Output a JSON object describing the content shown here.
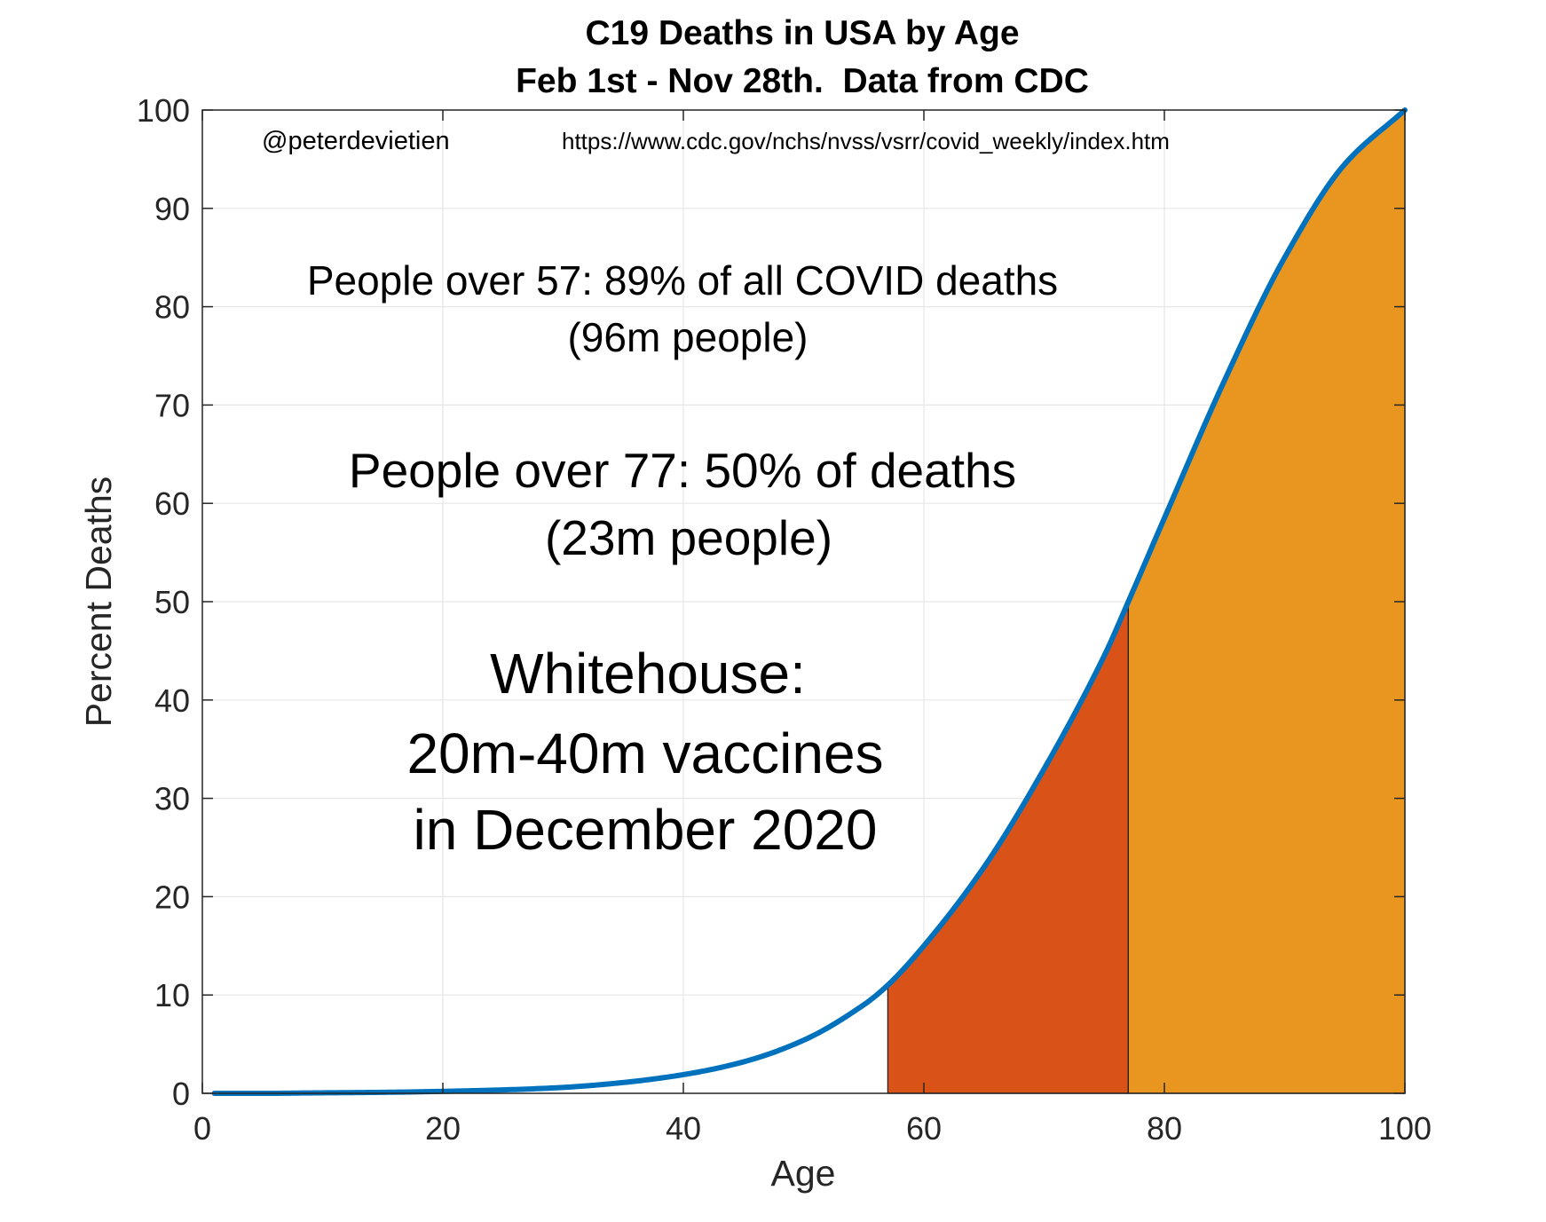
{
  "chart_data": {
    "type": "area",
    "title": "C19 Deaths in USA by Age",
    "subtitle": "Feb 1st - Nov 28th.  Data from CDC",
    "xlabel": "Age",
    "ylabel": "Percent Deaths",
    "xlim": [
      0,
      100
    ],
    "ylim": [
      0,
      100
    ],
    "xticks": [
      0,
      20,
      40,
      60,
      80,
      100
    ],
    "yticks": [
      0,
      10,
      20,
      30,
      40,
      50,
      60,
      70,
      80,
      90,
      100
    ],
    "grid": true,
    "series": [
      {
        "type": "line",
        "color": "#0072BD",
        "x": [
          1,
          5,
          10,
          15,
          20,
          25,
          30,
          35,
          40,
          45,
          50,
          55,
          57,
          60,
          65,
          70,
          75,
          77,
          80,
          85,
          90,
          95,
          100
        ],
        "y": [
          0,
          0,
          0.05,
          0.1,
          0.2,
          0.35,
          0.6,
          1.1,
          1.9,
          3.2,
          5.4,
          9.0,
          11.0,
          15.0,
          23.0,
          33.0,
          44.5,
          50.0,
          58.5,
          72.5,
          85.0,
          94.5,
          100
        ]
      }
    ],
    "shaded_regions": [
      {
        "x_start": 57,
        "x_end": 77,
        "color": "#D95319"
      },
      {
        "x_start": 77,
        "x_end": 100,
        "color": "#E89620"
      }
    ],
    "annotations": {
      "credit": "@peterdevietien",
      "source_url": "https://www.cdc.gov/nchs/nvss/vsrr/covid_weekly/index.htm",
      "over57_line1": "People over 57: 89% of all COVID deaths",
      "over57_line2": "(96m people)",
      "over77_line1": "People over 77: 50% of deaths",
      "over77_line2": "(23m people)",
      "whitehouse_line1": "Whitehouse:",
      "whitehouse_line2": "20m-40m vaccines",
      "whitehouse_line3": "in December 2020"
    }
  }
}
